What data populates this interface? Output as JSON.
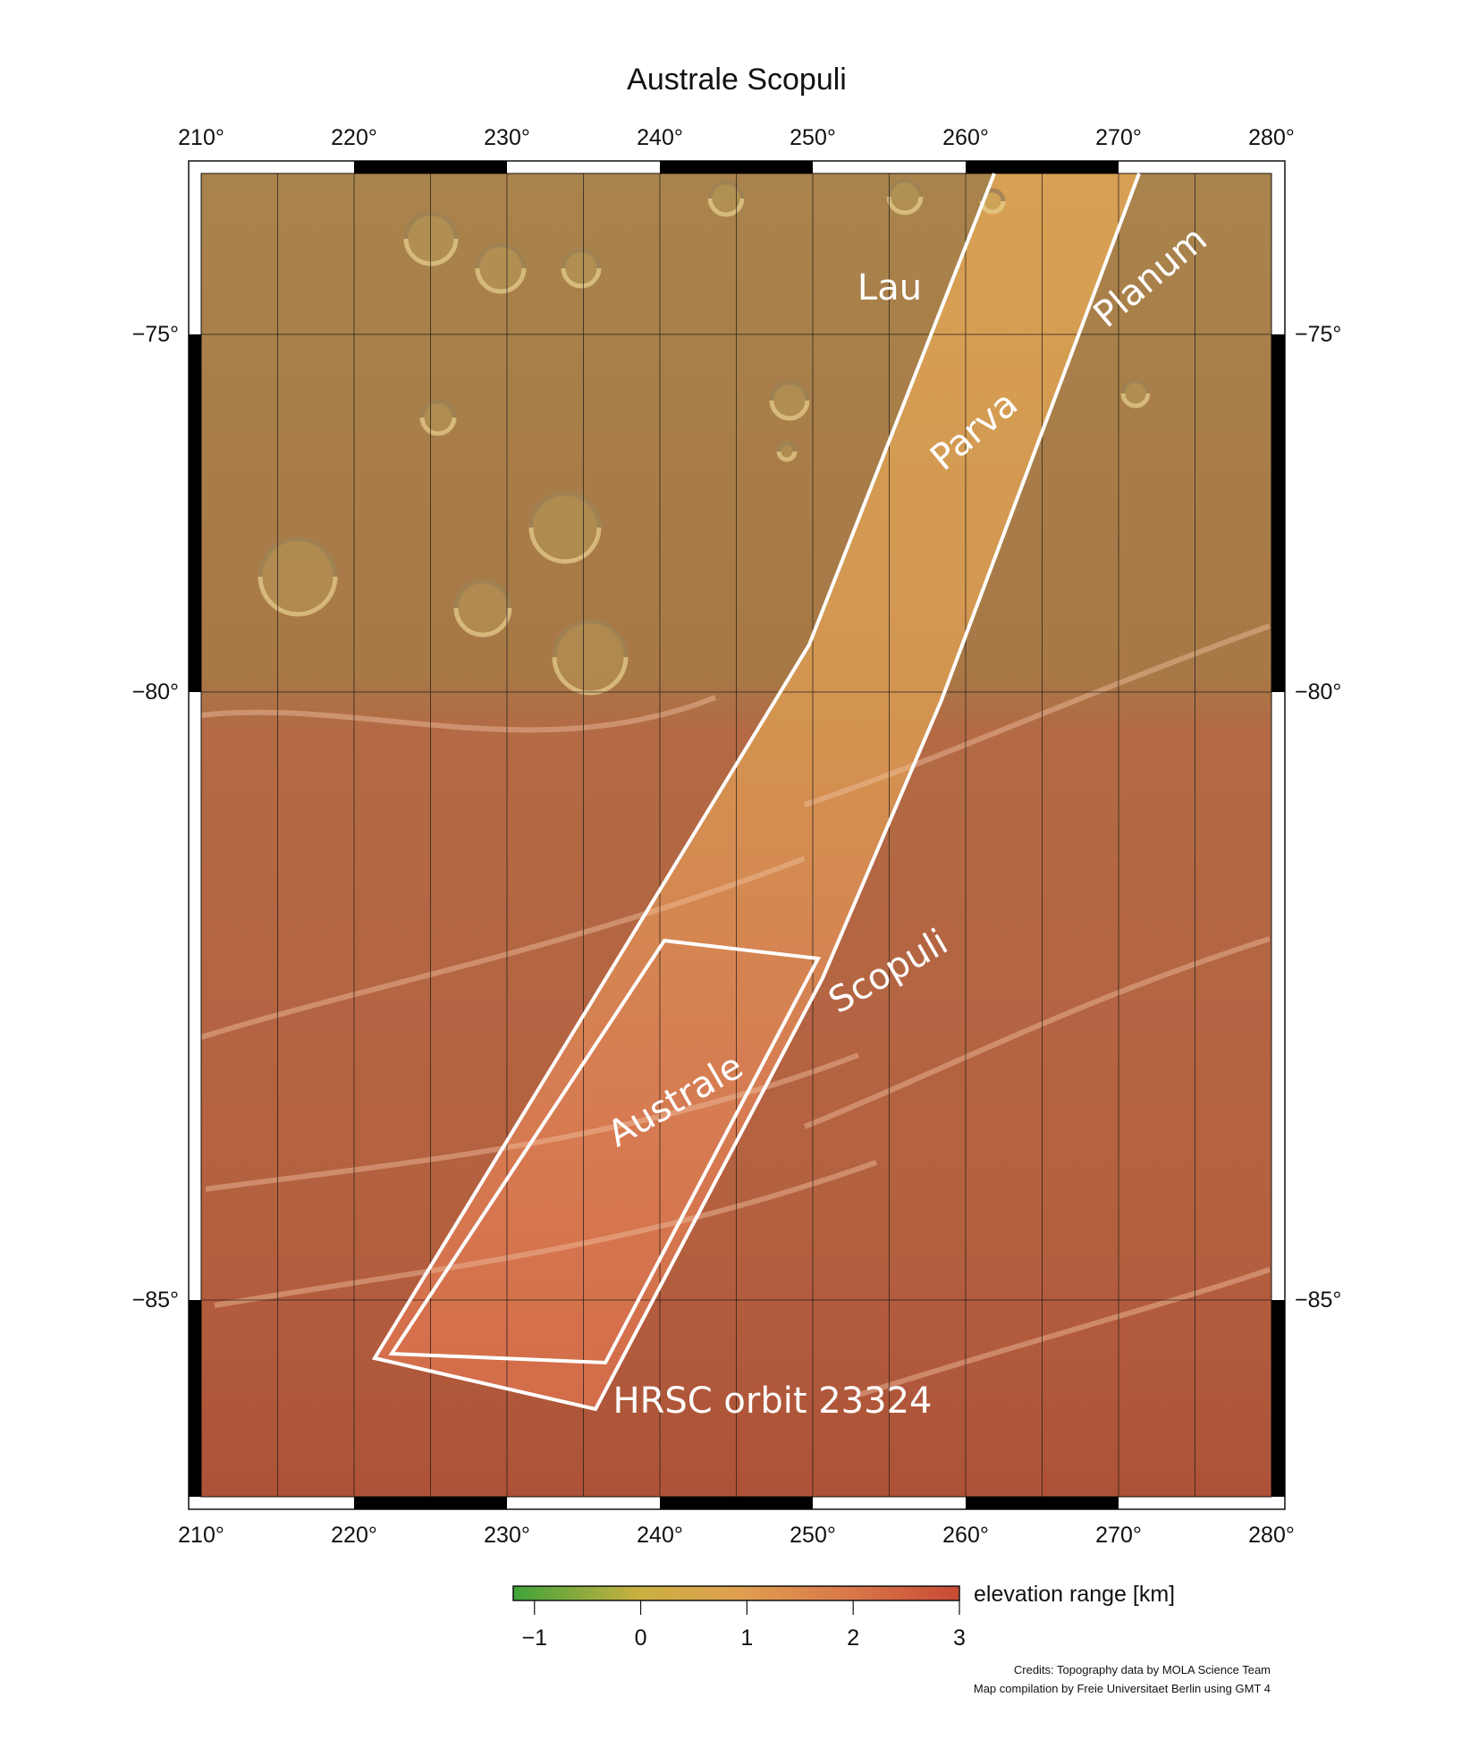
{
  "title": "Australe Scopuli",
  "longitude_labels": [
    "210°",
    "220°",
    "230°",
    "240°",
    "250°",
    "260°",
    "270°",
    "280°"
  ],
  "latitude_labels": [
    "−75°",
    "−80°",
    "−85°"
  ],
  "place_labels": {
    "lau": "Lau",
    "planum": "Planum",
    "parva": "Parva",
    "scopuli": "Scopuli",
    "australe": "Australe",
    "orbit": "HRSC orbit 23324"
  },
  "colorbar": {
    "label": "elevation range [km]",
    "ticks": [
      "−1",
      "0",
      "1",
      "2",
      "3"
    ],
    "range_km": [
      -1.2,
      3
    ],
    "colors": [
      "#3fa33a",
      "#c9b040",
      "#e0a050",
      "#d9784a",
      "#c84a35"
    ]
  },
  "credits": {
    "line1": "Credits: Topography data by MOLA Science Team",
    "line2": "Map compilation by Freie Universitaet Berlin using GMT 4"
  }
}
